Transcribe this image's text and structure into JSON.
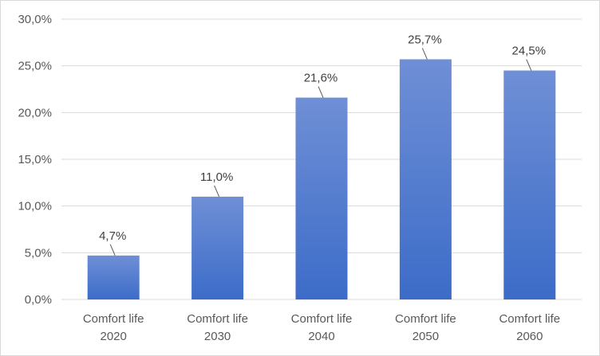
{
  "chart_data": {
    "type": "bar",
    "categories": [
      [
        "Comfort life",
        "2020"
      ],
      [
        "Comfort life",
        "2030"
      ],
      [
        "Comfort life",
        "2040"
      ],
      [
        "Comfort life",
        "2050"
      ],
      [
        "Comfort life",
        "2060"
      ]
    ],
    "values": [
      4.7,
      11.0,
      21.6,
      25.7,
      24.5
    ],
    "data_labels": [
      "4,7%",
      "11,0%",
      "21,6%",
      "25,7%",
      "24,5%"
    ],
    "y_ticks": [
      "0,0%",
      "5,0%",
      "10,0%",
      "15,0%",
      "20,0%",
      "25,0%",
      "30,0%"
    ],
    "ylim": [
      0,
      30
    ],
    "ytick_step": 5,
    "grid": true,
    "legend": "none",
    "colors": {
      "bar_top": "#6f8fd6",
      "bar_bottom": "#3c6cc8",
      "grid": "#d9d9d9",
      "leader": "#595959"
    }
  }
}
